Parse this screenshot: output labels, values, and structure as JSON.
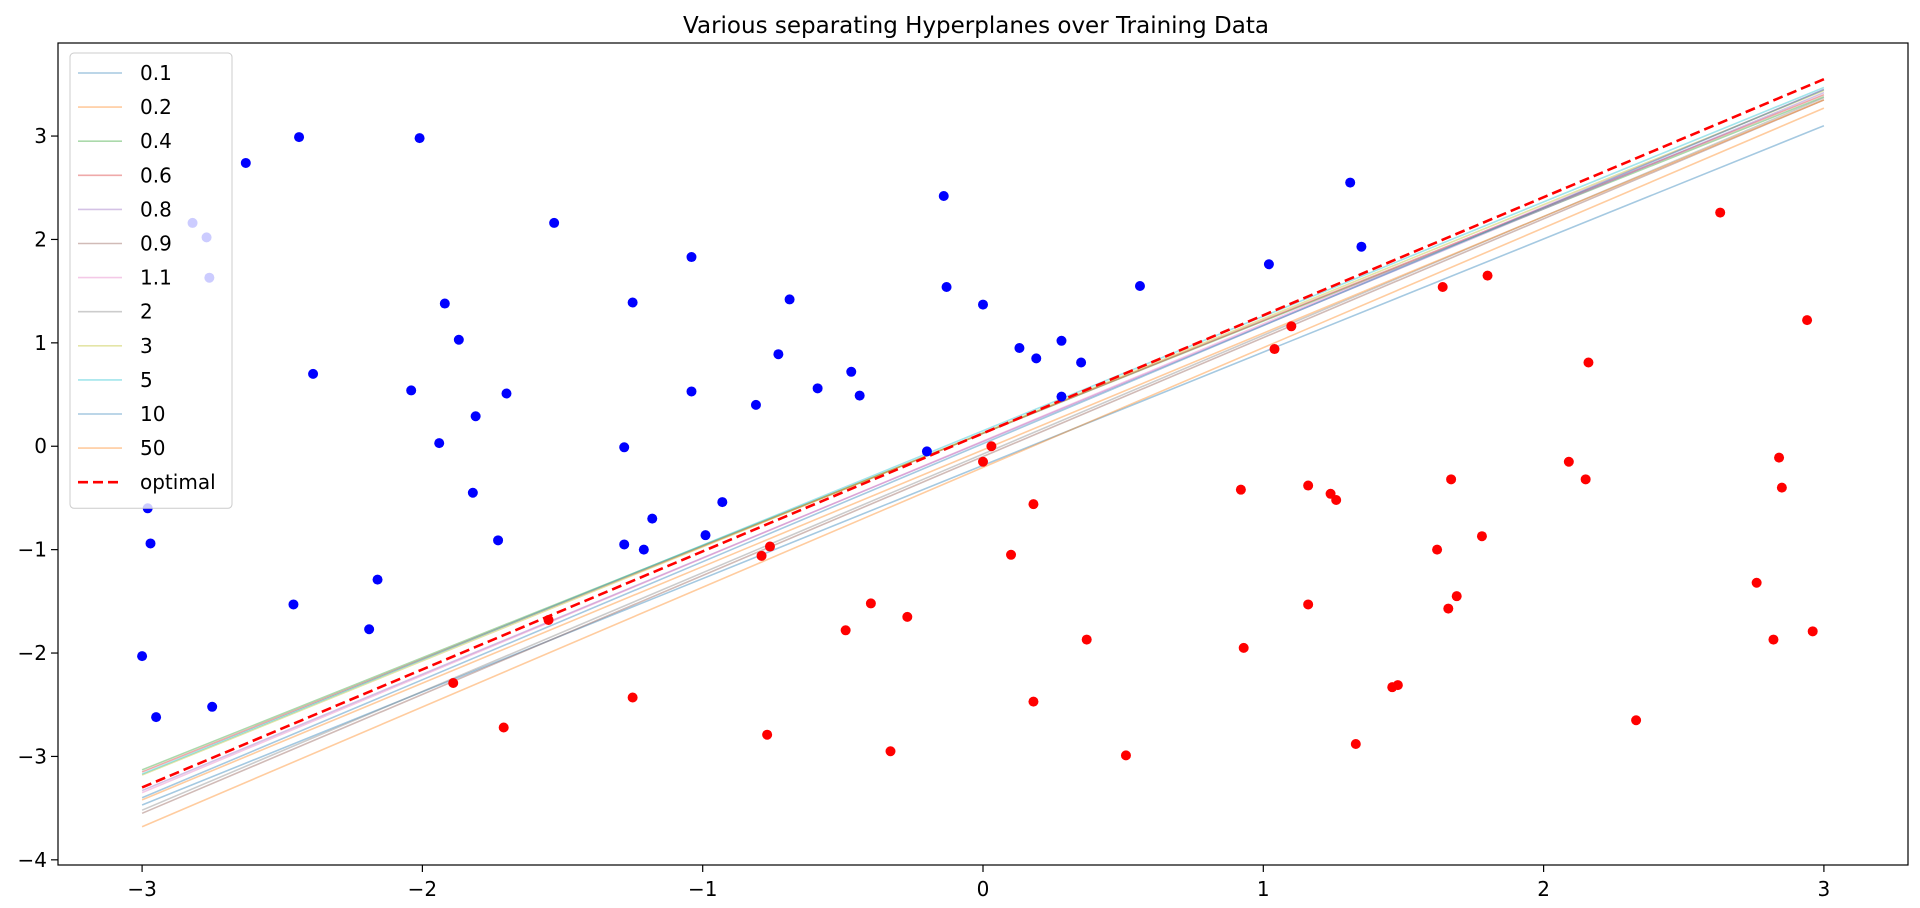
{
  "chart_data": {
    "type": "scatter",
    "title": "Various separating Hyperplanes over Training Data",
    "xlabel": "",
    "ylabel": "",
    "xlim": [
      -3.3,
      3.3
    ],
    "ylim": [
      -4.05,
      3.9
    ],
    "xticks": [
      -3,
      -2,
      -1,
      0,
      1,
      2,
      3
    ],
    "yticks": [
      -4,
      -3,
      -2,
      -1,
      0,
      1,
      2,
      3
    ],
    "xtick_labels": [
      "−3",
      "−2",
      "−1",
      "0",
      "1",
      "2",
      "3"
    ],
    "ytick_labels": [
      "−4",
      "−3",
      "−2",
      "−1",
      "0",
      "1",
      "2",
      "3"
    ],
    "grid": false,
    "legend_position": "top-left",
    "colors": {
      "class_a": "#0000ff",
      "class_b": "#ff0000"
    },
    "points": {
      "class_a": [
        [
          -3.0,
          -2.03
        ],
        [
          -2.95,
          -2.62
        ],
        [
          -2.97,
          -0.94
        ],
        [
          -2.98,
          -0.6
        ],
        [
          -2.75,
          -2.52
        ],
        [
          -2.63,
          2.74
        ],
        [
          -2.44,
          2.99
        ],
        [
          -2.01,
          2.98
        ],
        [
          -2.82,
          2.16
        ],
        [
          -2.77,
          2.02
        ],
        [
          -2.76,
          1.63
        ],
        [
          -2.39,
          0.7
        ],
        [
          -2.46,
          -1.53
        ],
        [
          -2.16,
          -1.29
        ],
        [
          -2.19,
          -1.77
        ],
        [
          -2.04,
          0.54
        ],
        [
          -1.92,
          1.38
        ],
        [
          -1.87,
          1.03
        ],
        [
          -1.94,
          0.03
        ],
        [
          -1.81,
          0.29
        ],
        [
          -1.82,
          -0.45
        ],
        [
          -1.73,
          -0.91
        ],
        [
          -1.7,
          0.51
        ],
        [
          -1.53,
          2.16
        ],
        [
          -1.28,
          -0.01
        ],
        [
          -1.28,
          -0.95
        ],
        [
          -1.21,
          -1.0
        ],
        [
          -1.25,
          1.39
        ],
        [
          -1.18,
          -0.7
        ],
        [
          -1.04,
          1.83
        ],
        [
          -1.04,
          0.53
        ],
        [
          -0.99,
          -0.86
        ],
        [
          -0.93,
          -0.54
        ],
        [
          -0.81,
          0.4
        ],
        [
          -0.73,
          0.89
        ],
        [
          -0.69,
          1.42
        ],
        [
          -0.59,
          0.56
        ],
        [
          -0.47,
          0.72
        ],
        [
          -0.44,
          0.49
        ],
        [
          -0.2,
          -0.05
        ],
        [
          -0.14,
          2.42
        ],
        [
          -0.13,
          1.54
        ],
        [
          0.0,
          1.37
        ],
        [
          0.13,
          0.95
        ],
        [
          0.19,
          0.85
        ],
        [
          0.28,
          1.02
        ],
        [
          0.35,
          0.81
        ],
        [
          0.28,
          0.48
        ],
        [
          0.56,
          1.55
        ],
        [
          1.02,
          1.76
        ],
        [
          1.31,
          2.55
        ],
        [
          1.35,
          1.93
        ]
      ],
      "class_b": [
        [
          0.03,
          0.0
        ],
        [
          0.0,
          -0.15
        ],
        [
          0.18,
          -0.56
        ],
        [
          0.1,
          -1.05
        ],
        [
          -0.79,
          -1.06
        ],
        [
          -0.76,
          -0.97
        ],
        [
          -0.4,
          -1.52
        ],
        [
          -0.27,
          -1.65
        ],
        [
          -0.49,
          -1.78
        ],
        [
          -1.55,
          -1.68
        ],
        [
          -1.89,
          -2.29
        ],
        [
          -1.71,
          -2.72
        ],
        [
          -1.25,
          -2.43
        ],
        [
          -0.77,
          -2.79
        ],
        [
          -0.33,
          -2.95
        ],
        [
          0.18,
          -2.47
        ],
        [
          0.37,
          -1.87
        ],
        [
          0.51,
          -2.99
        ],
        [
          0.93,
          -1.95
        ],
        [
          0.92,
          -0.42
        ],
        [
          1.04,
          0.94
        ],
        [
          1.1,
          1.16
        ],
        [
          1.16,
          -0.38
        ],
        [
          1.24,
          -0.46
        ],
        [
          1.26,
          -0.52
        ],
        [
          1.16,
          -1.53
        ],
        [
          1.33,
          -2.88
        ],
        [
          1.46,
          -2.33
        ],
        [
          1.48,
          -2.31
        ],
        [
          1.64,
          1.54
        ],
        [
          1.67,
          -0.32
        ],
        [
          1.62,
          -1.0
        ],
        [
          1.66,
          -1.57
        ],
        [
          1.69,
          -1.45
        ],
        [
          1.78,
          -0.87
        ],
        [
          1.8,
          1.65
        ],
        [
          2.09,
          -0.15
        ],
        [
          2.15,
          -0.32
        ],
        [
          2.16,
          0.81
        ],
        [
          2.33,
          -2.65
        ],
        [
          2.63,
          2.26
        ],
        [
          2.76,
          -1.32
        ],
        [
          2.82,
          -1.87
        ],
        [
          2.84,
          -0.11
        ],
        [
          2.85,
          -0.4
        ],
        [
          2.94,
          1.22
        ],
        [
          2.96,
          -1.79
        ]
      ]
    },
    "series": [
      {
        "name": "0.1",
        "color": "#1f77b4",
        "x": [
          -3,
          3
        ],
        "y": [
          -3.47,
          3.1
        ]
      },
      {
        "name": "0.2",
        "color": "#ff7f0e",
        "x": [
          -3,
          3
        ],
        "y": [
          -3.68,
          3.27
        ]
      },
      {
        "name": "0.4",
        "color": "#2ca02c",
        "x": [
          -3,
          3
        ],
        "y": [
          -3.13,
          3.38
        ]
      },
      {
        "name": "0.6",
        "color": "#d62728",
        "x": [
          -3,
          3
        ],
        "y": [
          -3.15,
          3.4
        ]
      },
      {
        "name": "0.8",
        "color": "#9467bd",
        "x": [
          -3,
          3
        ],
        "y": [
          -3.33,
          3.42
        ]
      },
      {
        "name": "0.9",
        "color": "#8c564b",
        "x": [
          -3,
          3
        ],
        "y": [
          -3.55,
          3.35
        ]
      },
      {
        "name": "1.1",
        "color": "#e377c2",
        "x": [
          -3,
          3
        ],
        "y": [
          -3.35,
          3.45
        ]
      },
      {
        "name": "2",
        "color": "#7f7f7f",
        "x": [
          -3,
          3
        ],
        "y": [
          -3.52,
          3.37
        ]
      },
      {
        "name": "3",
        "color": "#bcbd22",
        "x": [
          -3,
          3
        ],
        "y": [
          -3.18,
          3.44
        ]
      },
      {
        "name": "5",
        "color": "#17becf",
        "x": [
          -3,
          3
        ],
        "y": [
          -3.17,
          3.47
        ]
      },
      {
        "name": "10",
        "color": "#1f77b4",
        "x": [
          -3,
          3
        ],
        "y": [
          -3.4,
          3.45
        ]
      },
      {
        "name": "50",
        "color": "#ff7f0e",
        "x": [
          -3,
          3
        ],
        "y": [
          -3.42,
          3.35
        ]
      },
      {
        "name": "optimal",
        "color": "#ff0000",
        "dashed": true,
        "x": [
          -3,
          3
        ],
        "y": [
          -3.3,
          3.55
        ]
      }
    ]
  }
}
